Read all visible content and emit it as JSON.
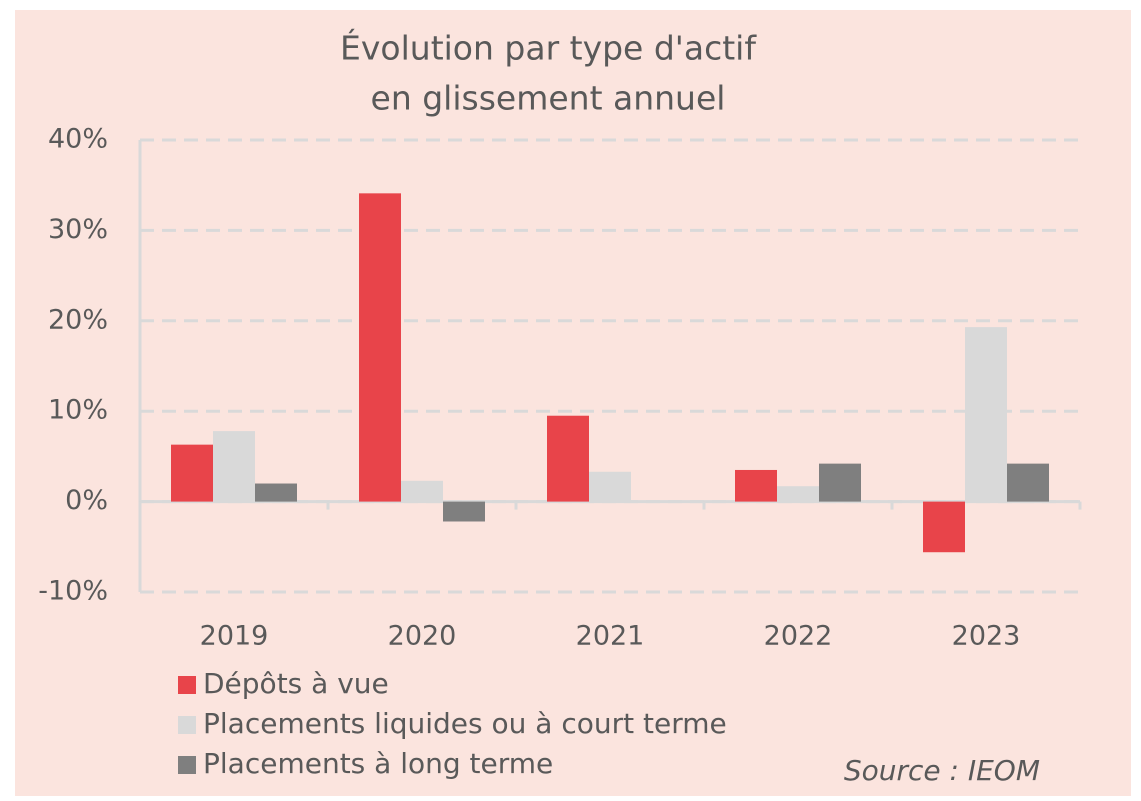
{
  "chart_data": {
    "type": "bar",
    "title": [
      "Évolution  par type d'actif",
      "en glissement  annuel"
    ],
    "categories": [
      "2019",
      "2020",
      "2021",
      "2022",
      "2023"
    ],
    "series": [
      {
        "name": "Dépôts à vue",
        "color": "#e8444a",
        "values": [
          6.3,
          34.1,
          9.5,
          3.5,
          -5.6
        ]
      },
      {
        "name": "Placements liquides ou à court terme",
        "color": "#d9d9d9",
        "values": [
          7.8,
          2.3,
          3.3,
          1.7,
          19.3
        ]
      },
      {
        "name": "Placements à long terme",
        "color": "#7f7f7f",
        "values": [
          2.0,
          -2.2,
          0,
          4.2,
          4.2
        ]
      }
    ],
    "ylim": [
      -10,
      40
    ],
    "yticks": [
      {
        "value": -10,
        "label": "-10%"
      },
      {
        "value": 0,
        "label": "0%"
      },
      {
        "value": 10,
        "label": "10%"
      },
      {
        "value": 20,
        "label": "20%"
      },
      {
        "value": 30,
        "label": "30%"
      },
      {
        "value": 40,
        "label": "40%"
      }
    ],
    "grid": true,
    "legend": "bottom",
    "annotation": "Source : IEOM"
  }
}
